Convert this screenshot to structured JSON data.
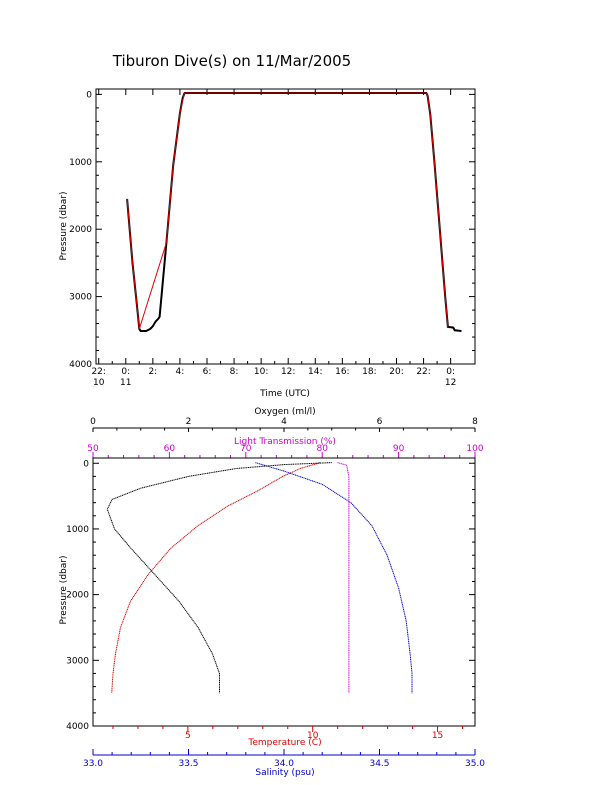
{
  "title": "Tiburon Dive(s) on 11/Mar/2005",
  "colors": {
    "black": "#000000",
    "temperature": "#dd0000",
    "salinity": "#0000cc",
    "light_transmission": "#cc00cc",
    "oxygen": "#000000"
  },
  "chart_data": [
    {
      "type": "line",
      "xlabel": "Time (UTC)",
      "ylabel": "Pressure (dbar)",
      "x_tick_labels": [
        {
          "hours": 22,
          "text": "22:",
          "sub": "10"
        },
        {
          "hours": 24,
          "text": "0:",
          "sub": "11"
        },
        {
          "hours": 26,
          "text": "2:",
          "sub": ""
        },
        {
          "hours": 28,
          "text": "4:",
          "sub": ""
        },
        {
          "hours": 30,
          "text": "6:",
          "sub": ""
        },
        {
          "hours": 32,
          "text": "8:",
          "sub": ""
        },
        {
          "hours": 34,
          "text": "10:",
          "sub": ""
        },
        {
          "hours": 36,
          "text": "12:",
          "sub": ""
        },
        {
          "hours": 38,
          "text": "14:",
          "sub": ""
        },
        {
          "hours": 40,
          "text": "16:",
          "sub": ""
        },
        {
          "hours": 42,
          "text": "18:",
          "sub": ""
        },
        {
          "hours": 44,
          "text": "20:",
          "sub": ""
        },
        {
          "hours": 46,
          "text": "22:",
          "sub": ""
        },
        {
          "hours": 48,
          "text": "0:",
          "sub": "12"
        }
      ],
      "xlim_hours": [
        21.8,
        49.8
      ],
      "y_ticks": [
        0,
        1000,
        2000,
        3000,
        4000
      ],
      "ylim": [
        4000,
        -80
      ],
      "series": [
        {
          "color": "#000000",
          "points": [
            [
              24.1,
              1550
            ],
            [
              24.5,
              2500
            ],
            [
              24.8,
              3080
            ],
            [
              25.0,
              3480
            ],
            [
              25.1,
              3510
            ],
            [
              25.5,
              3510
            ],
            [
              25.8,
              3480
            ],
            [
              26.0,
              3440
            ],
            [
              26.2,
              3370
            ],
            [
              26.4,
              3330
            ],
            [
              26.5,
              3300
            ],
            [
              27.0,
              2200
            ],
            [
              27.5,
              1050
            ],
            [
              28.0,
              280
            ],
            [
              28.2,
              60
            ],
            [
              28.3,
              0
            ],
            [
              28.35,
              -20
            ],
            [
              46.2,
              -20
            ],
            [
              46.3,
              20
            ],
            [
              46.5,
              300
            ],
            [
              46.8,
              1000
            ],
            [
              47.2,
              2000
            ],
            [
              47.6,
              3000
            ],
            [
              47.8,
              3450
            ],
            [
              48.2,
              3460
            ],
            [
              48.3,
              3500
            ],
            [
              48.8,
              3510
            ]
          ]
        },
        {
          "color": "#dd0000",
          "points": [
            [
              24.1,
              1550
            ],
            [
              24.5,
              2500
            ],
            [
              24.8,
              3080
            ],
            [
              25.0,
              3480
            ],
            [
              27.0,
              2200
            ],
            [
              27.5,
              1050
            ],
            [
              28.0,
              280
            ],
            [
              28.3,
              0
            ],
            [
              28.35,
              -20
            ],
            [
              46.2,
              -20
            ],
            [
              46.3,
              20
            ],
            [
              46.5,
              300
            ],
            [
              46.8,
              1000
            ],
            [
              47.2,
              2000
            ],
            [
              47.6,
              3000
            ],
            [
              47.8,
              3450
            ]
          ]
        }
      ]
    },
    {
      "type": "line",
      "ylabel": "Pressure (dbar)",
      "ylim": [
        4000,
        -80
      ],
      "y_ticks": [
        0,
        1000,
        2000,
        3000,
        4000
      ],
      "axes": {
        "oxygen": {
          "label": "Oxygen (ml/l)",
          "range": [
            0,
            8
          ],
          "ticks": [
            0,
            2,
            4,
            6,
            8
          ],
          "position": "top"
        },
        "light_transmission": {
          "label": "Light Transmission (%)",
          "range": [
            50,
            100
          ],
          "ticks": [
            50,
            60,
            70,
            80,
            90,
            100
          ],
          "position": "top"
        },
        "temperature": {
          "label": "Temperature (C)",
          "range": [
            1.2,
            16.5
          ],
          "ticks": [
            5,
            10,
            15
          ],
          "position": "bottom"
        },
        "salinity": {
          "label": "Salinity (psu)",
          "range": [
            33.0,
            35.0
          ],
          "ticks": [
            "33.0",
            "33.5",
            "34.0",
            "34.5",
            "35.0"
          ],
          "position": "bottom"
        }
      },
      "series": [
        {
          "axis": "temperature",
          "color": "#dd0000",
          "points": [
            [
              10.3,
              -10
            ],
            [
              9.5,
              80
            ],
            [
              8.8,
              200
            ],
            [
              7.8,
              420
            ],
            [
              6.6,
              650
            ],
            [
              5.4,
              950
            ],
            [
              4.3,
              1300
            ],
            [
              3.4,
              1700
            ],
            [
              2.7,
              2100
            ],
            [
              2.3,
              2500
            ],
            [
              2.1,
              2900
            ],
            [
              2.0,
              3200
            ],
            [
              1.95,
              3500
            ]
          ]
        },
        {
          "axis": "salinity",
          "color": "#0000cc",
          "points": [
            [
              33.85,
              -10
            ],
            [
              34.0,
              120
            ],
            [
              34.2,
              320
            ],
            [
              34.35,
              600
            ],
            [
              34.46,
              950
            ],
            [
              34.54,
              1400
            ],
            [
              34.6,
              1900
            ],
            [
              34.64,
              2400
            ],
            [
              34.66,
              2900
            ],
            [
              34.67,
              3200
            ],
            [
              34.67,
              3500
            ]
          ]
        },
        {
          "axis": "light_transmission",
          "color": "#cc00cc",
          "points": [
            [
              82.0,
              -10
            ],
            [
              83.2,
              30
            ],
            [
              83.5,
              200
            ],
            [
              83.5,
              1000
            ],
            [
              83.5,
              2000
            ],
            [
              83.5,
              3000
            ],
            [
              83.5,
              3500
            ]
          ]
        },
        {
          "axis": "oxygen",
          "color": "#000000",
          "points": [
            [
              5.0,
              -10
            ],
            [
              4.0,
              20
            ],
            [
              3.0,
              80
            ],
            [
              2.0,
              200
            ],
            [
              1.0,
              380
            ],
            [
              0.4,
              550
            ],
            [
              0.3,
              700
            ],
            [
              0.45,
              1000
            ],
            [
              0.8,
              1300
            ],
            [
              1.3,
              1700
            ],
            [
              1.8,
              2100
            ],
            [
              2.2,
              2500
            ],
            [
              2.5,
              2900
            ],
            [
              2.65,
              3200
            ],
            [
              2.65,
              3500
            ]
          ]
        }
      ]
    }
  ]
}
